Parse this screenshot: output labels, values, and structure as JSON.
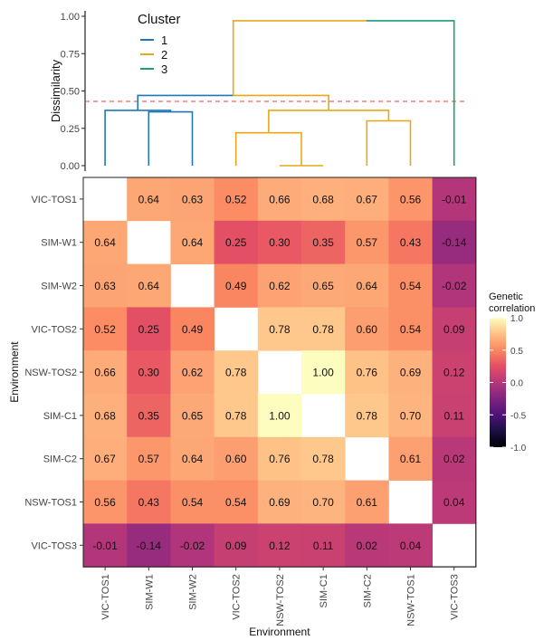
{
  "chart_data": [
    {
      "type": "dendrogram",
      "ylabel": "Dissimilarity",
      "yticks": [
        "0.00",
        "0.25",
        "0.50",
        "0.75",
        "1.00"
      ],
      "ylim": [
        0,
        1
      ],
      "cut_height": 0.43,
      "legend": {
        "title": "Cluster",
        "entries": [
          {
            "label": "1",
            "color": "#1f77b4"
          },
          {
            "label": "2",
            "color": "#e6a817"
          },
          {
            "label": "3",
            "color": "#1a9e77"
          }
        ],
        "position": "top-left"
      },
      "leaf_order": [
        "VIC-TOS1",
        "SIM-W1",
        "SIM-W2",
        "VIC-TOS2",
        "NSW-TOS2",
        "SIM-C1",
        "SIM-C2",
        "NSW-TOS1",
        "VIC-TOS3"
      ],
      "merges": [
        {
          "left": "SIM-W1",
          "right": "SIM-W2",
          "height": 0.36,
          "cluster": "1"
        },
        {
          "left": "VIC-TOS1",
          "right": "SIM-W1+SIM-W2",
          "height": 0.37,
          "cluster": "1"
        },
        {
          "left": "NSW-TOS2",
          "right": "SIM-C1",
          "height": 0.0,
          "cluster": "2"
        },
        {
          "left": "VIC-TOS2",
          "right": "NSW-TOS2+SIM-C1",
          "height": 0.22,
          "cluster": "2"
        },
        {
          "left": "SIM-C2",
          "right": "NSW-TOS1",
          "height": 0.3,
          "cluster": "2"
        },
        {
          "left": "VIC-TOS2..SIM-C1",
          "right": "SIM-C2+NSW-TOS1",
          "height": 0.37,
          "cluster": "2"
        },
        {
          "left": "cluster 1",
          "right": "cluster 2",
          "height": 0.47,
          "cluster": "2"
        },
        {
          "left": "clusters 1+2",
          "right": "VIC-TOS3",
          "height": 0.97,
          "cluster": "3"
        }
      ]
    },
    {
      "type": "heatmap",
      "xlabel": "Environment",
      "ylabel": "Environment",
      "categories": [
        "VIC-TOS1",
        "SIM-W1",
        "SIM-W2",
        "VIC-TOS2",
        "NSW-TOS2",
        "SIM-C1",
        "SIM-C2",
        "NSW-TOS1",
        "VIC-TOS3"
      ],
      "values": [
        [
          null,
          0.64,
          0.63,
          0.52,
          0.66,
          0.68,
          0.67,
          0.56,
          -0.01
        ],
        [
          0.64,
          null,
          0.64,
          0.25,
          0.3,
          0.35,
          0.57,
          0.43,
          -0.14
        ],
        [
          0.63,
          0.64,
          null,
          0.49,
          0.62,
          0.65,
          0.64,
          0.54,
          -0.02
        ],
        [
          0.52,
          0.25,
          0.49,
          null,
          0.78,
          0.78,
          0.6,
          0.54,
          0.09
        ],
        [
          0.66,
          0.3,
          0.62,
          0.78,
          null,
          1.0,
          0.76,
          0.69,
          0.12
        ],
        [
          0.68,
          0.35,
          0.65,
          0.78,
          1.0,
          null,
          0.78,
          0.7,
          0.11
        ],
        [
          0.67,
          0.57,
          0.64,
          0.6,
          0.76,
          0.78,
          null,
          0.61,
          0.02
        ],
        [
          0.56,
          0.43,
          0.54,
          0.54,
          0.69,
          0.7,
          0.61,
          null,
          0.04
        ],
        [
          -0.01,
          -0.14,
          -0.02,
          0.09,
          0.12,
          0.11,
          0.02,
          0.04,
          null
        ]
      ],
      "value_labels": [
        [
          "",
          "0.64",
          "0.63",
          "0.52",
          "0.66",
          "0.68",
          "0.67",
          "0.56",
          "-0.01"
        ],
        [
          "0.64",
          "",
          "0.64",
          "0.25",
          "0.30",
          "0.35",
          "0.57",
          "0.43",
          "-0.14"
        ],
        [
          "0.63",
          "0.64",
          "",
          "0.49",
          "0.62",
          "0.65",
          "0.64",
          "0.54",
          "-0.02"
        ],
        [
          "0.52",
          "0.25",
          "0.49",
          "",
          "0.78",
          "0.78",
          "0.60",
          "0.54",
          "0.09"
        ],
        [
          "0.66",
          "0.30",
          "0.62",
          "0.78",
          "",
          "1.00",
          "0.76",
          "0.69",
          "0.12"
        ],
        [
          "0.68",
          "0.35",
          "0.65",
          "0.78",
          "1.00",
          "",
          "0.78",
          "0.70",
          "0.11"
        ],
        [
          "0.67",
          "0.57",
          "0.64",
          "0.60",
          "0.76",
          "0.78",
          "",
          "0.61",
          "0.02"
        ],
        [
          "0.56",
          "0.43",
          "0.54",
          "0.54",
          "0.69",
          "0.70",
          "0.61",
          "",
          "0.04"
        ],
        [
          "-0.01",
          "-0.14",
          "-0.02",
          "0.09",
          "0.12",
          "0.11",
          "0.02",
          "0.04",
          ""
        ]
      ],
      "colorbar": {
        "title_line1": "Genetic",
        "title_line2": "correlation",
        "range": [
          -1,
          1
        ],
        "ticks": [
          "1.0",
          "0.5",
          "0.0",
          "-0.5",
          "-1.0"
        ],
        "colormap": "magma"
      }
    }
  ]
}
